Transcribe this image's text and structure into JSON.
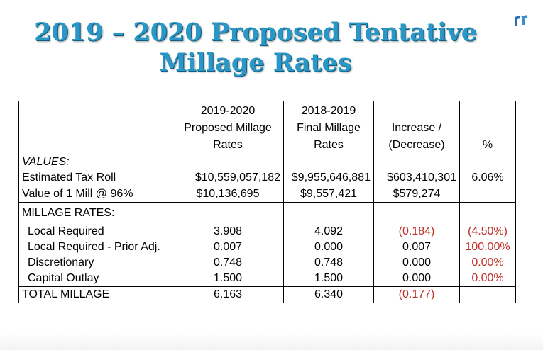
{
  "title": "2019 – 2020 Proposed Tentative Millage Rates",
  "header": {
    "col_proposed": [
      "2019-2020",
      "Proposed Millage",
      "Rates"
    ],
    "col_final": [
      "2018-2019",
      "Final Millage",
      "Rates"
    ],
    "col_change": [
      "Increase /",
      "(Decrease)"
    ],
    "col_pct": "%"
  },
  "values_section": {
    "label": "VALUES:",
    "rows": [
      {
        "label": "Estimated Tax Roll",
        "proposed": "$10,559,057,182",
        "final": "$9,955,646,881",
        "change": "$603,410,301",
        "pct": "6.06%"
      },
      {
        "label": "Value of 1 Mill @ 96%",
        "proposed": "$10,136,695",
        "final": "$9,557,421",
        "change": "$579,274",
        "pct": ""
      }
    ]
  },
  "millage_section": {
    "label": "MILLAGE RATES:",
    "rows": [
      {
        "label": "Local Required",
        "proposed": "3.908",
        "final": "4.092",
        "change": "(0.184)",
        "pct": "(4.50%)"
      },
      {
        "label": "Local Required - Prior Adj.",
        "proposed": "0.007",
        "final": "0.000",
        "change": "0.007",
        "pct": "100.00%"
      },
      {
        "label": "Discretionary",
        "proposed": "0.748",
        "final": "0.748",
        "change": "0.000",
        "pct": "0.00%"
      },
      {
        "label": "Capital Outlay",
        "proposed": "1.500",
        "final": "1.500",
        "change": "0.000",
        "pct": "0.00%"
      }
    ]
  },
  "total": {
    "label": "TOTAL MILLAGE",
    "proposed": "6.163",
    "final": "6.340",
    "change": "(0.177)",
    "pct": ""
  },
  "colors": {
    "title": "#2a97c6",
    "negative": "#c0302a"
  },
  "icons": {
    "logo": "small-blue-logo-icon"
  }
}
